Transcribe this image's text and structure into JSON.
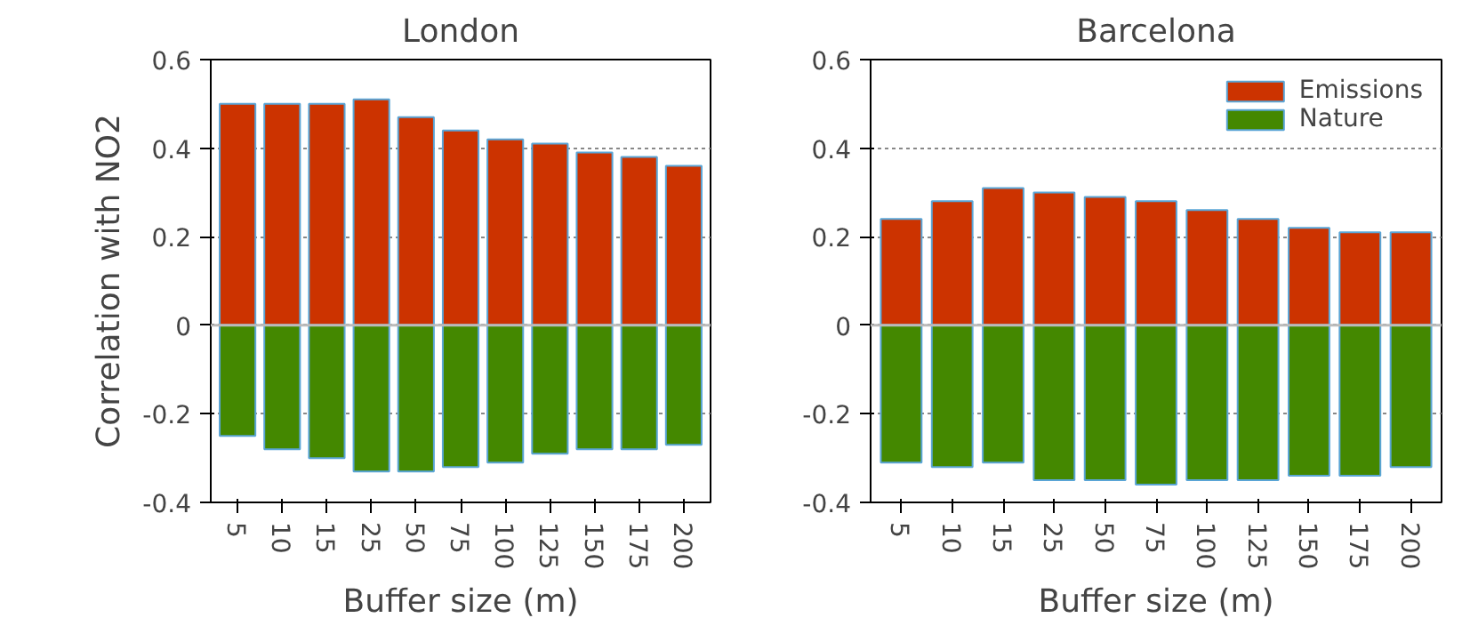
{
  "chart_data": [
    {
      "type": "bar",
      "title": "London",
      "xlabel": "Buffer size (m)",
      "ylabel": "Correlation with NO2",
      "categories": [
        "5",
        "10",
        "15",
        "25",
        "50",
        "75",
        "100",
        "125",
        "150",
        "175",
        "200"
      ],
      "series": [
        {
          "color": "#cc3300",
          "values": [
            0.5,
            0.5,
            0.5,
            0.51,
            0.47,
            0.44,
            0.42,
            0.41,
            0.39,
            0.38,
            0.36
          ]
        },
        {
          "color": "#448800",
          "values": [
            -0.25,
            -0.28,
            -0.3,
            -0.33,
            -0.33,
            -0.32,
            -0.31,
            -0.29,
            -0.28,
            -0.28,
            -0.27
          ]
        }
      ],
      "stacked": true,
      "ref_lines": [
        {
          "axis": "y",
          "value": 0,
          "color": "#bbbbbb"
        }
      ],
      "ylim": [
        -0.4,
        0.6
      ],
      "yticks": [
        -0.4,
        -0.2,
        0,
        0.2,
        0.4,
        0.6
      ],
      "grid": "y",
      "legend": false
    },
    {
      "type": "bar",
      "title": "Barcelona",
      "xlabel": "Buffer size (m)",
      "categories": [
        "5",
        "10",
        "15",
        "25",
        "50",
        "75",
        "100",
        "125",
        "150",
        "175",
        "200"
      ],
      "series": [
        {
          "name": "Emissions",
          "color": "#cc3300",
          "values": [
            0.24,
            0.28,
            0.31,
            0.3,
            0.29,
            0.28,
            0.26,
            0.24,
            0.22,
            0.21,
            0.21
          ]
        },
        {
          "name": "Nature",
          "color": "#448800",
          "values": [
            -0.31,
            -0.32,
            -0.31,
            -0.35,
            -0.35,
            -0.36,
            -0.35,
            -0.35,
            -0.34,
            -0.34,
            -0.32
          ]
        }
      ],
      "stacked": true,
      "ref_lines": [
        {
          "axis": "y",
          "value": 0,
          "color": "#bbbbbb"
        }
      ],
      "ylim": [
        -0.4,
        0.6
      ],
      "yticks": [
        -0.4,
        -0.2,
        0,
        0.2,
        0.4,
        0.6
      ],
      "grid": "y",
      "legend": "top right"
    }
  ]
}
